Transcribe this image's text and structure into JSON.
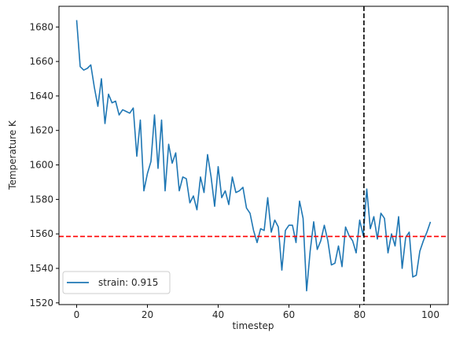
{
  "chart_data": {
    "type": "line",
    "xlabel": "timestep",
    "ylabel": "Temperature K",
    "xlim": [
      -5,
      105
    ],
    "ylim": [
      1519,
      1692
    ],
    "xticks": [
      0,
      20,
      40,
      60,
      80,
      100
    ],
    "yticks": [
      1520,
      1540,
      1560,
      1580,
      1600,
      1620,
      1640,
      1660,
      1680
    ],
    "grid": false,
    "legend_position": "lower-left",
    "series": [
      {
        "name": "strain: 0.915",
        "color": "#1f77b4",
        "x": [
          0,
          1,
          2,
          3,
          4,
          5,
          6,
          7,
          8,
          9,
          10,
          11,
          12,
          13,
          14,
          15,
          16,
          17,
          18,
          19,
          20,
          21,
          22,
          23,
          24,
          25,
          26,
          27,
          28,
          29,
          30,
          31,
          32,
          33,
          34,
          35,
          36,
          37,
          38,
          39,
          40,
          41,
          42,
          43,
          44,
          45,
          46,
          47,
          48,
          49,
          50,
          51,
          52,
          53,
          54,
          55,
          56,
          57,
          58,
          59,
          60,
          61,
          62,
          63,
          64,
          65,
          66,
          67,
          68,
          69,
          70,
          71,
          72,
          73,
          74,
          75,
          76,
          77,
          78,
          79,
          80,
          81,
          82,
          83,
          84,
          85,
          86,
          87,
          88,
          89,
          90,
          91,
          92,
          93,
          94,
          95,
          96,
          97,
          98,
          99,
          100
        ],
        "y": [
          1684,
          1657,
          1655,
          1656,
          1658,
          1645,
          1634,
          1650,
          1624,
          1641,
          1636,
          1637,
          1629,
          1632,
          1631,
          1630,
          1633,
          1605,
          1626,
          1585,
          1595,
          1602,
          1629,
          1598,
          1626,
          1585,
          1612,
          1601,
          1607,
          1585,
          1593,
          1592,
          1578,
          1582,
          1574,
          1593,
          1584,
          1606,
          1593,
          1576,
          1599,
          1581,
          1585,
          1577,
          1593,
          1584,
          1585,
          1587,
          1575,
          1572,
          1562,
          1555,
          1563,
          1562,
          1581,
          1561,
          1568,
          1564,
          1539,
          1562,
          1565,
          1565,
          1555,
          1579,
          1569,
          1527,
          1550,
          1567,
          1551,
          1556,
          1565,
          1556,
          1542,
          1543,
          1553,
          1541,
          1564,
          1559,
          1556,
          1549,
          1568,
          1559,
          1586,
          1563,
          1570,
          1557,
          1572,
          1569,
          1549,
          1560,
          1553,
          1570,
          1540,
          1558,
          1561,
          1535,
          1536,
          1550,
          1556,
          1561,
          1567
        ]
      }
    ],
    "reference_lines": [
      {
        "orientation": "horizontal",
        "value": 1558.5,
        "color": "#ff0000",
        "style": "dashed"
      },
      {
        "orientation": "vertical",
        "value": 81.2,
        "color": "#000000",
        "style": "dashed"
      }
    ]
  }
}
